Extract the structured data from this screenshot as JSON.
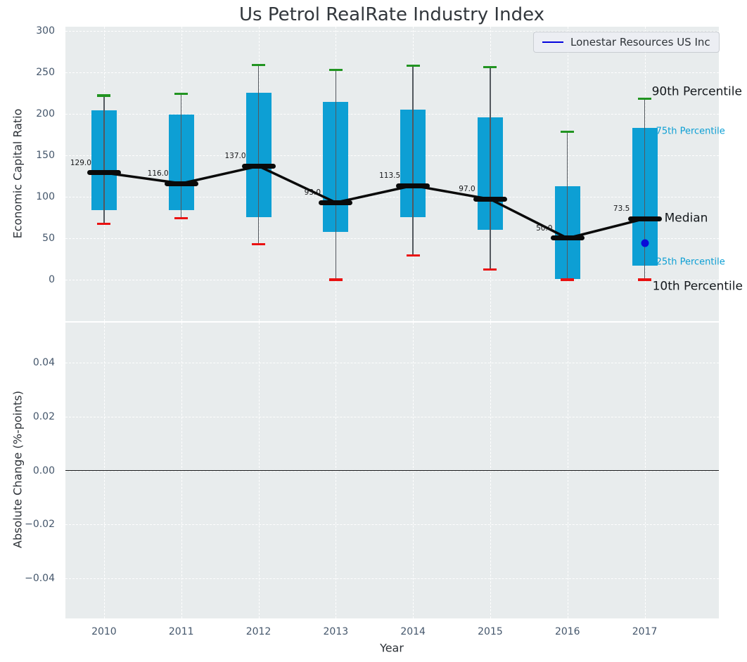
{
  "title": "Us Petrol RealRate Industry Index",
  "top_axis": {
    "ylabel": "Economic Capital Ratio",
    "yticks": [
      {
        "label": "0",
        "value": 0
      },
      {
        "label": "50",
        "value": 50
      },
      {
        "label": "100",
        "value": 100
      },
      {
        "label": "150",
        "value": 150
      },
      {
        "label": "200",
        "value": 200
      },
      {
        "label": "250",
        "value": 250
      },
      {
        "label": "300",
        "value": 300
      }
    ]
  },
  "bottom_axis": {
    "ylabel": "Absolute Change (%-points)",
    "xlabel": "Year",
    "yticks": [
      {
        "label": "0.04",
        "value": 0.04
      },
      {
        "label": "0.02",
        "value": 0.02
      },
      {
        "label": "0.00",
        "value": 0
      },
      {
        "label": "−0.02",
        "value": -0.02
      },
      {
        "label": "−0.04",
        "value": -0.04
      }
    ]
  },
  "legend": {
    "entries": [
      {
        "label": "Lonestar Resources US Inc",
        "color": "#0202dd"
      }
    ]
  },
  "annotations": [
    {
      "label": "90th Percentile",
      "stat": "p90",
      "size": "large",
      "color": "#15191d"
    },
    {
      "label": "75th Percentile",
      "stat": "q75",
      "size": "small",
      "color": "#0d9fd4"
    },
    {
      "label": "Median",
      "stat": "median",
      "size": "large",
      "color": "#15191d"
    },
    {
      "label": "25th Percentile",
      "stat": "q25",
      "size": "small",
      "color": "#0d9fd4"
    },
    {
      "label": "10th Percentile",
      "stat": "p10",
      "size": "large",
      "color": "#15191d"
    }
  ],
  "colors": {
    "axes_bg": "#e8eced",
    "grid": "#ffffff",
    "box_fill": "#0d9fd4",
    "p90_cap": "#219421",
    "p10_cap": "#ea1111",
    "median": "#0a0a0a",
    "whisker": "#53585e",
    "company_line": "#0202dd",
    "company_marker": "#0a0ad8",
    "tick_text": "#44566b",
    "zero_line": "#17181a"
  },
  "chart_data": [
    {
      "type": "boxplot",
      "title": "Us Petrol RealRate Industry Index",
      "xlabel": "Year",
      "ylabel": "Economic Capital Ratio",
      "xlim": [
        2009.5,
        2017.96
      ],
      "ylim": [
        -50,
        305
      ],
      "grid": true,
      "legend_position": "upper right",
      "categories": [
        2010,
        2011,
        2012,
        2013,
        2014,
        2015,
        2016,
        2017
      ],
      "boxes": [
        {
          "year": 2010,
          "p10": 67,
          "q25": 84,
          "median": 129.0,
          "q75": 204,
          "p90": 222,
          "median_label": "129.0"
        },
        {
          "year": 2011,
          "p10": 74,
          "q25": 84,
          "median": 116.0,
          "q75": 199,
          "p90": 224,
          "median_label": "116.0"
        },
        {
          "year": 2012,
          "p10": 43,
          "q25": 75,
          "median": 137.0,
          "q75": 225,
          "p90": 259,
          "median_label": "137.0"
        },
        {
          "year": 2013,
          "p10": 0,
          "q25": 58,
          "median": 93.0,
          "q75": 214,
          "p90": 253,
          "median_label": "93.0"
        },
        {
          "year": 2014,
          "p10": 29,
          "q25": 75,
          "median": 113.5,
          "q75": 205,
          "p90": 258,
          "median_label": "113.5"
        },
        {
          "year": 2015,
          "p10": 12,
          "q25": 60,
          "median": 97.0,
          "q75": 196,
          "p90": 256,
          "median_label": "97.0"
        },
        {
          "year": 2016,
          "p10": 0,
          "q25": 1,
          "median": 50.0,
          "q75": 113,
          "p90": 178,
          "median_label": "50.0"
        },
        {
          "year": 2017,
          "p10": 0,
          "q25": 17,
          "median": 73.5,
          "q75": 183,
          "p90": 218,
          "median_label": "73.5"
        }
      ],
      "series": [
        {
          "name": "Lonestar Resources US Inc",
          "x": [
            2017
          ],
          "y": [
            44
          ]
        }
      ]
    },
    {
      "type": "line",
      "ylabel": "Absolute Change (%-points)",
      "xlabel": "Year",
      "xlim": [
        2009.5,
        2017.96
      ],
      "ylim": [
        -0.055,
        0.055
      ],
      "yticks": [
        0.04,
        0.02,
        0,
        -0.02,
        -0.04
      ],
      "grid": true,
      "zero_line": 0.0,
      "series": []
    }
  ]
}
